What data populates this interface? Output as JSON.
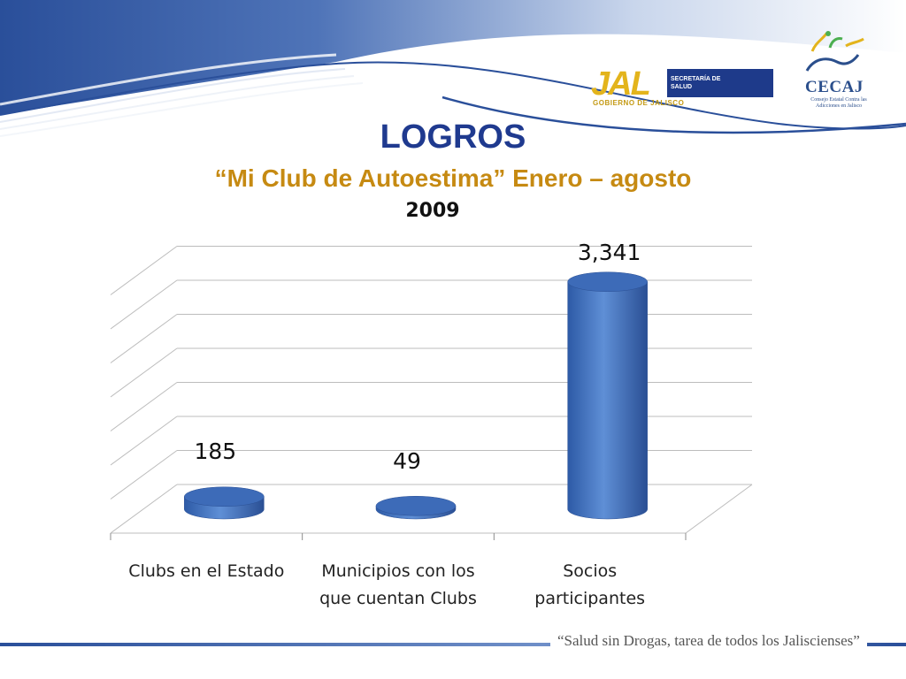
{
  "header": {
    "jal_logo": {
      "word": "JAL",
      "sub": "GOBIERNO DE JALISCO",
      "box_line1": "SECRETARÍA DE",
      "box_line2": "SALUD"
    },
    "cecaj_logo": {
      "name": "CECAJ",
      "sub": "Consejo Estatal Contra las Adicciones en Jalisco"
    },
    "colors": {
      "brand_blue": "#1f3a8f",
      "brand_gold": "#c68a12"
    }
  },
  "slide": {
    "title": "LOGROS",
    "subtitle": "“Mi Club de Autoestima” Enero – agosto",
    "year": "2009"
  },
  "chart_data": {
    "type": "bar",
    "style": "3d-cylinder",
    "categories": [
      [
        "Clubs en el Estado"
      ],
      [
        "Municipios con los",
        "que cuentan Clubs"
      ],
      [
        "Socios",
        "participantes"
      ]
    ],
    "series": [
      {
        "values": [
          185,
          49,
          3341
        ],
        "data_labels": [
          "185",
          "49",
          "3,341"
        ],
        "color": "#4a78c2"
      }
    ],
    "ylim": [
      0,
      3500
    ],
    "grid": true,
    "legend": "none"
  },
  "footer": {
    "slogan": "“Salud sin Drogas, tarea de todos los Jaliscienses”"
  }
}
